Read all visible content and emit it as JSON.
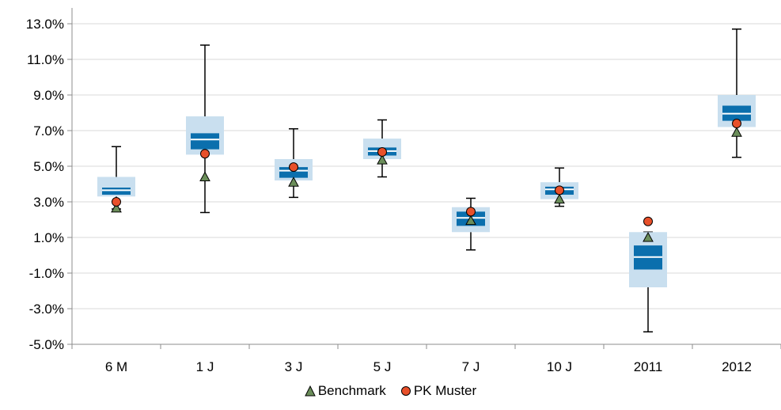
{
  "chart_data": {
    "type": "box",
    "title": "",
    "xlabel": "",
    "ylabel": "",
    "ylim": [
      -5.0,
      13.0
    ],
    "y_ticks": [
      "13.0%",
      "11.0%",
      "9.0%",
      "7.0%",
      "5.0%",
      "3.0%",
      "1.0%",
      "-1.0%",
      "-3.0%",
      "-5.0%"
    ],
    "y_tick_values": [
      13,
      11,
      9,
      7,
      5,
      3,
      1,
      -1,
      -3,
      -5
    ],
    "categories": [
      "6 M",
      "1 J",
      "3 J",
      "5 J",
      "7 J",
      "10 J",
      "2011",
      "2012"
    ],
    "boxes": [
      {
        "whisker_low": 2.6,
        "q1": 3.3,
        "q_lower": 3.4,
        "median": 3.65,
        "q_upper": 3.8,
        "q3": 4.4,
        "whisker_high": 6.1
      },
      {
        "whisker_low": 2.4,
        "q1": 5.65,
        "q_lower": 5.95,
        "median": 6.5,
        "q_upper": 6.85,
        "q3": 7.8,
        "whisker_high": 11.8
      },
      {
        "whisker_low": 3.25,
        "q1": 4.2,
        "q_lower": 4.35,
        "median": 4.75,
        "q_upper": 4.95,
        "q3": 5.4,
        "whisker_high": 7.1
      },
      {
        "whisker_low": 4.4,
        "q1": 5.4,
        "q_lower": 5.6,
        "median": 5.85,
        "q_upper": 6.05,
        "q3": 6.55,
        "whisker_high": 7.6
      },
      {
        "whisker_low": 0.3,
        "q1": 1.3,
        "q_lower": 1.65,
        "median": 2.1,
        "q_upper": 2.45,
        "q3": 2.7,
        "whisker_high": 3.2
      },
      {
        "whisker_low": 2.75,
        "q1": 3.15,
        "q_lower": 3.4,
        "median": 3.7,
        "q_upper": 3.85,
        "q3": 4.1,
        "whisker_high": 4.9
      },
      {
        "whisker_low": -4.3,
        "q1": -1.8,
        "q_lower": -0.8,
        "median": -0.1,
        "q_upper": 0.55,
        "q3": 1.3,
        "whisker_high": 1.3
      },
      {
        "whisker_low": 5.5,
        "q1": 7.2,
        "q_lower": 7.55,
        "median": 7.95,
        "q_upper": 8.4,
        "q3": 9.0,
        "whisker_high": 12.7
      }
    ],
    "series": [
      {
        "name": "Benchmark",
        "marker": "triangle",
        "color": "#6b8e5a",
        "values": [
          2.65,
          4.4,
          4.1,
          5.35,
          1.95,
          3.15,
          1.0,
          6.9
        ]
      },
      {
        "name": "PK Muster",
        "marker": "circle",
        "color": "#e8502a",
        "values": [
          3.0,
          5.7,
          4.95,
          5.8,
          2.45,
          3.65,
          1.9,
          7.4
        ]
      }
    ],
    "colors": {
      "box_outer": "#c9dfef",
      "box_inner": "#0b6fad",
      "median_line": "#ffffff",
      "grid": "#d9d9d9",
      "axis": "#8c8c8c"
    },
    "grid": true,
    "legend_position": "bottom"
  }
}
